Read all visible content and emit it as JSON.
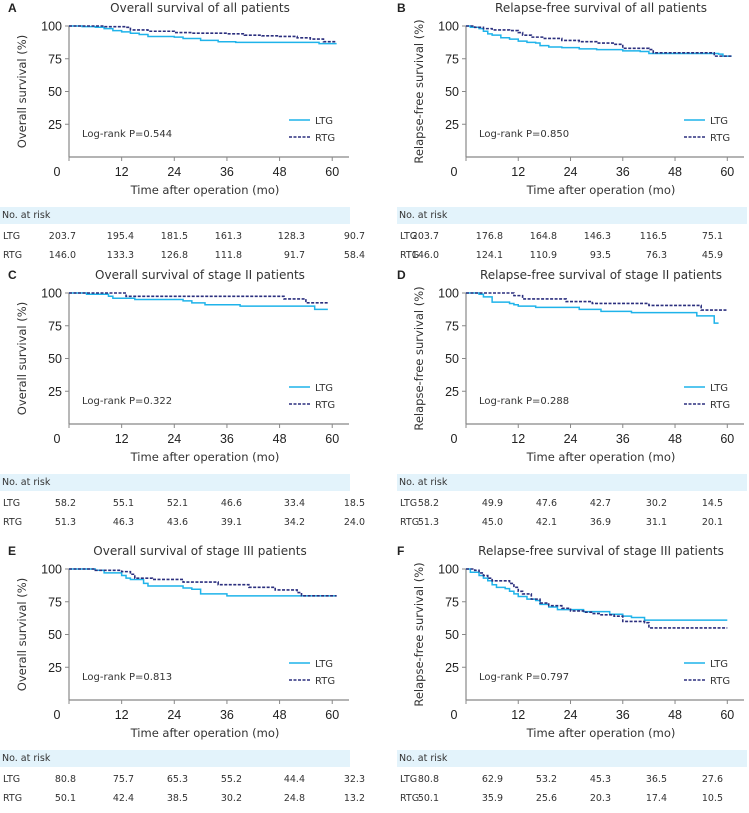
{
  "colors": {
    "ltg": "#1fb3ea",
    "rtg": "#2b2f7e",
    "risk_header_bg": "#e3f3fb"
  },
  "chart_data": [
    {
      "id": "A",
      "type": "line",
      "letter": "A",
      "title": "Overall survival of all patients",
      "xlabel": "Time after operation (mo)",
      "ylabel": "Overall survival (%)",
      "xlim": [
        0,
        62
      ],
      "ylim": [
        0,
        100
      ],
      "xticks": [
        "0",
        "12",
        "24",
        "36",
        "48",
        "60"
      ],
      "yticks": [
        "25",
        "50",
        "75",
        "100"
      ],
      "annotation": "Log-rank P=0.544",
      "legend": {
        "position": "bottom-right",
        "entries": [
          "LTG",
          "RTG"
        ]
      },
      "series": [
        {
          "name": "LTG",
          "style": "solid",
          "x": [
            0,
            3,
            6,
            8,
            10,
            12,
            14,
            16,
            18,
            24,
            26,
            30,
            34,
            38,
            42,
            48,
            57,
            61
          ],
          "y": [
            100,
            99.5,
            99,
            98,
            96.5,
            95.5,
            94.5,
            93.5,
            92,
            91.5,
            90.5,
            89,
            88,
            87.5,
            87.5,
            87.5,
            86.5,
            86.5
          ]
        },
        {
          "name": "RTG",
          "style": "dashed",
          "x": [
            0,
            8,
            13,
            14,
            18,
            24,
            28,
            36,
            40,
            44,
            48,
            52,
            55,
            58,
            61
          ],
          "y": [
            100,
            99.5,
            99,
            97,
            96,
            95,
            94.5,
            94,
            93,
            92.5,
            92,
            91,
            90,
            88,
            88
          ]
        }
      ],
      "risk_table": {
        "header": "No. at risk",
        "rows": [
          {
            "name": "LTG",
            "values": [
              "203.7",
              "195.4",
              "181.5",
              "161.3",
              "128.3",
              "90.7"
            ]
          },
          {
            "name": "RTG",
            "values": [
              "146.0",
              "133.3",
              "126.8",
              "111.8",
              "91.7",
              "58.4"
            ]
          }
        ]
      }
    },
    {
      "id": "B",
      "type": "line",
      "letter": "B",
      "title": "Relapse-free survival of all patients",
      "xlabel": "Time after operation (mo)",
      "ylabel": "Relapse-free survival (%)",
      "xlim": [
        0,
        62
      ],
      "ylim": [
        0,
        100
      ],
      "xticks": [
        "0",
        "12",
        "24",
        "36",
        "48",
        "60"
      ],
      "yticks": [
        "25",
        "50",
        "75",
        "100"
      ],
      "annotation": "Log-rank P=0.850",
      "legend": {
        "position": "bottom-right",
        "entries": [
          "LTG",
          "RTG"
        ]
      },
      "series": [
        {
          "name": "LTG",
          "style": "solid",
          "x": [
            0,
            1,
            3,
            4,
            5,
            6,
            8,
            10,
            12,
            14,
            16,
            17,
            19,
            22,
            26,
            30,
            36,
            40,
            42,
            48,
            54,
            58,
            59,
            61
          ],
          "y": [
            100,
            99,
            98,
            96,
            94,
            93,
            91,
            90,
            88.5,
            87.5,
            87,
            85,
            84,
            83.5,
            82.5,
            82,
            81,
            80.5,
            79,
            79,
            79,
            78.5,
            77,
            77
          ]
        },
        {
          "name": "RTG",
          "style": "dashed",
          "x": [
            0,
            2,
            4,
            6,
            10,
            12,
            13,
            15,
            18,
            22,
            26,
            30,
            34,
            36,
            42,
            43,
            48,
            54,
            57,
            61
          ],
          "y": [
            100,
            99,
            98,
            97,
            96.5,
            95,
            93,
            91.5,
            90.5,
            89,
            88,
            87,
            86,
            83,
            82,
            79.5,
            79.5,
            79.5,
            77,
            77
          ]
        }
      ],
      "risk_table": {
        "header": "No. at risk",
        "rows": [
          {
            "name": "LTG",
            "values": [
              "203.7",
              "176.8",
              "164.8",
              "146.3",
              "116.5",
              "75.1"
            ]
          },
          {
            "name": "RTG",
            "values": [
              "146.0",
              "124.1",
              "110.9",
              "93.5",
              "76.3",
              "45.9"
            ]
          }
        ]
      }
    },
    {
      "id": "C",
      "type": "line",
      "letter": "C",
      "title": "Overall survival of stage II patients",
      "xlabel": "Time after operation (mo)",
      "ylabel": "Overall survival (%)",
      "xlim": [
        0,
        62
      ],
      "ylim": [
        0,
        100
      ],
      "xticks": [
        "0",
        "12",
        "24",
        "36",
        "48",
        "60"
      ],
      "yticks": [
        "25",
        "50",
        "75",
        "100"
      ],
      "annotation": "Log-rank P=0.322",
      "legend": {
        "position": "bottom-right",
        "entries": [
          "LTG",
          "RTG"
        ]
      },
      "series": [
        {
          "name": "LTG",
          "style": "solid",
          "x": [
            0,
            4,
            9,
            10,
            15,
            26,
            28,
            31,
            39,
            56,
            59
          ],
          "y": [
            100,
            99,
            97.5,
            96,
            95,
            94,
            92.5,
            91,
            90,
            87.5,
            87.5
          ]
        },
        {
          "name": "RTG",
          "style": "dashed",
          "x": [
            0,
            13,
            49,
            54,
            59
          ],
          "y": [
            100,
            97.5,
            95.5,
            92.5,
            92.5
          ]
        }
      ],
      "risk_table": {
        "header": "No. at risk",
        "rows": [
          {
            "name": "LTG",
            "values": [
              "58.2",
              "55.1",
              "52.1",
              "46.6",
              "33.4",
              "18.5"
            ]
          },
          {
            "name": "RTG",
            "values": [
              "51.3",
              "46.3",
              "43.6",
              "39.1",
              "34.2",
              "24.0"
            ]
          }
        ]
      }
    },
    {
      "id": "D",
      "type": "line",
      "letter": "D",
      "title": "Relapse-free survival of stage II patients",
      "xlabel": "Time after operation (mo)",
      "ylabel": "Relapse-free survival (%)",
      "xlim": [
        0,
        62
      ],
      "ylim": [
        0,
        100
      ],
      "xticks": [
        "0",
        "12",
        "24",
        "36",
        "48",
        "60"
      ],
      "yticks": [
        "25",
        "50",
        "75",
        "100"
      ],
      "annotation": "Log-rank P=0.288",
      "legend": {
        "position": "bottom-right",
        "entries": [
          "LTG",
          "RTG"
        ]
      },
      "series": [
        {
          "name": "LTG",
          "style": "solid",
          "x": [
            0,
            3,
            4,
            6,
            10,
            11,
            12,
            16,
            26,
            31,
            38,
            53,
            57,
            58
          ],
          "y": [
            100,
            99,
            97,
            93,
            92,
            91,
            90,
            89,
            87.5,
            86,
            85,
            82.5,
            77,
            77
          ]
        },
        {
          "name": "RTG",
          "style": "dashed",
          "x": [
            0,
            11,
            13,
            23,
            29,
            42,
            54,
            60
          ],
          "y": [
            100,
            98,
            95.5,
            93.5,
            92,
            90.5,
            87,
            87
          ]
        }
      ],
      "risk_table": {
        "header": "No. at risk",
        "rows": [
          {
            "name": "LTG",
            "values": [
              "58.2",
              "49.9",
              "47.6",
              "42.7",
              "30.2",
              "14.5"
            ]
          },
          {
            "name": "RTG",
            "values": [
              "51.3",
              "45.0",
              "42.1",
              "36.9",
              "31.1",
              "20.1"
            ]
          }
        ]
      }
    },
    {
      "id": "E",
      "type": "line",
      "letter": "E",
      "title": "Overall survival of stage III patients",
      "xlabel": "Time after operation (mo)",
      "ylabel": "Overall survival (%)",
      "xlim": [
        0,
        62
      ],
      "ylim": [
        0,
        100
      ],
      "xticks": [
        "0",
        "12",
        "24",
        "36",
        "48",
        "60"
      ],
      "yticks": [
        "25",
        "50",
        "75",
        "100"
      ],
      "annotation": "Log-rank P=0.813",
      "legend": {
        "position": "bottom-right",
        "entries": [
          "LTG",
          "RTG"
        ]
      },
      "series": [
        {
          "name": "LTG",
          "style": "solid",
          "x": [
            0,
            6,
            8,
            12,
            13,
            14,
            17,
            18,
            26,
            28,
            30,
            36,
            61
          ],
          "y": [
            100,
            99,
            97,
            95,
            93,
            92,
            89,
            87,
            85.5,
            84.5,
            81,
            79.5,
            79.5
          ]
        },
        {
          "name": "RTG",
          "style": "dashed",
          "x": [
            0,
            6,
            12,
            14,
            15,
            19,
            26,
            34,
            41,
            47,
            52,
            53,
            61
          ],
          "y": [
            100,
            99,
            98,
            96,
            93,
            92,
            90,
            88,
            86,
            84,
            82,
            79.5,
            79.5
          ]
        }
      ],
      "risk_table": {
        "header": "No. at risk",
        "rows": [
          {
            "name": "LTG",
            "values": [
              "80.8",
              "75.7",
              "65.3",
              "55.2",
              "44.4",
              "32.3"
            ]
          },
          {
            "name": "RTG",
            "values": [
              "50.1",
              "42.4",
              "38.5",
              "30.2",
              "24.8",
              "13.2"
            ]
          }
        ]
      }
    },
    {
      "id": "F",
      "type": "line",
      "letter": "F",
      "title": "Relapse-free survival of stage III patients",
      "xlabel": "Time after operation (mo)",
      "ylabel": "Relapse-free survival (%)",
      "xlim": [
        0,
        62
      ],
      "ylim": [
        0,
        100
      ],
      "xticks": [
        "0",
        "12",
        "24",
        "36",
        "48",
        "60"
      ],
      "yticks": [
        "25",
        "50",
        "75",
        "100"
      ],
      "annotation": "Log-rank P=0.797",
      "legend": {
        "position": "bottom-right",
        "entries": [
          "LTG",
          "RTG"
        ]
      },
      "series": [
        {
          "name": "LTG",
          "style": "solid",
          "x": [
            0,
            1,
            3,
            4,
            5,
            6,
            7,
            9,
            10,
            11,
            12,
            14,
            16,
            17,
            19,
            21,
            27,
            33,
            36,
            38,
            41,
            60
          ],
          "y": [
            100,
            97.5,
            95,
            93,
            91,
            88,
            86,
            85,
            83,
            81,
            79,
            77,
            76,
            73,
            71,
            69,
            67.5,
            65.5,
            64,
            63,
            61,
            61
          ]
        },
        {
          "name": "RTG",
          "style": "dashed",
          "x": [
            0,
            2,
            3,
            4,
            5,
            6,
            10,
            11,
            12,
            13,
            15,
            17,
            19,
            22,
            24,
            27,
            29,
            31,
            34,
            36,
            41,
            42,
            60
          ],
          "y": [
            100,
            99,
            97,
            95,
            93,
            91,
            89,
            86,
            83,
            81,
            77,
            74,
            72,
            70,
            68,
            67,
            66,
            65,
            64,
            60,
            59,
            55,
            55
          ]
        }
      ],
      "risk_table": {
        "header": "No. at risk",
        "rows": [
          {
            "name": "LTG",
            "values": [
              "80.8",
              "62.9",
              "53.2",
              "45.3",
              "36.5",
              "27.6"
            ]
          },
          {
            "name": "RTG",
            "values": [
              "50.1",
              "35.9",
              "25.6",
              "20.3",
              "17.4",
              "10.5"
            ]
          }
        ]
      }
    }
  ]
}
